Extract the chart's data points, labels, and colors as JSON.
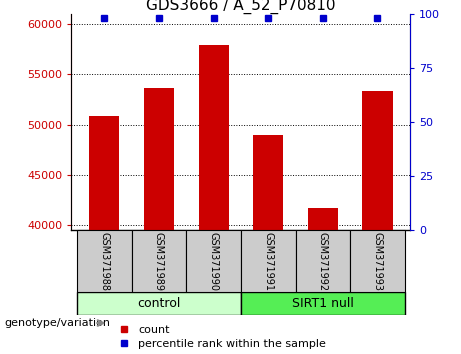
{
  "title": "GDS3666 / A_52_P70810",
  "samples": [
    "GSM371988",
    "GSM371989",
    "GSM371990",
    "GSM371991",
    "GSM371992",
    "GSM371993"
  ],
  "counts": [
    50900,
    53600,
    57900,
    49000,
    41700,
    53300
  ],
  "percentile_ranks": [
    99,
    99,
    99,
    99,
    99,
    99
  ],
  "ylim_left": [
    39500,
    61000
  ],
  "ylim_right": [
    0,
    100
  ],
  "yticks_left": [
    40000,
    45000,
    50000,
    55000,
    60000
  ],
  "yticks_right": [
    0,
    25,
    50,
    75,
    100
  ],
  "bar_color": "#cc0000",
  "percentile_color": "#0000cc",
  "control_label": "control",
  "sirt1_label": "SIRT1 null",
  "control_bg": "#ccffcc",
  "sirt1_bg": "#55ee55",
  "sample_bg": "#cccccc",
  "legend_count_label": "count",
  "legend_percentile_label": "percentile rank within the sample",
  "genotype_label": "genotype/variation",
  "title_fontsize": 11,
  "tick_fontsize": 8,
  "sample_fontsize": 7,
  "group_fontsize": 9,
  "legend_fontsize": 8
}
